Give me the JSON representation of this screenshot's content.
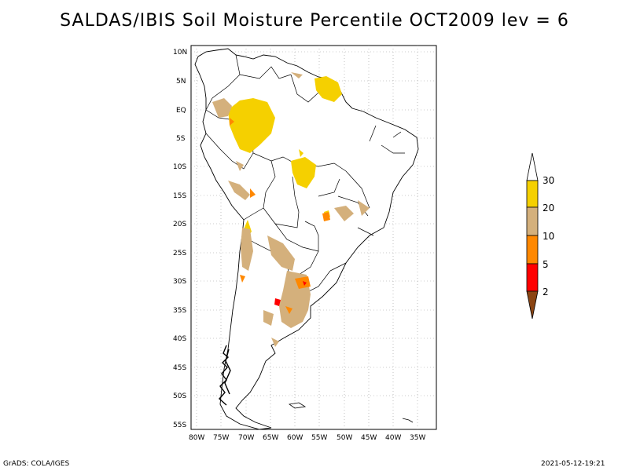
{
  "title": "SALDAS/IBIS Soil Moisture Percentile OCT2009 lev = 6",
  "footer": {
    "left": "GrADS: COLA/IGES",
    "right": "2021-05-12-19:21"
  },
  "axes": {
    "lat_labels": [
      "10N",
      "5N",
      "EQ",
      "5S",
      "10S",
      "15S",
      "20S",
      "25S",
      "30S",
      "35S",
      "40S",
      "45S",
      "50S",
      "55S"
    ],
    "lon_labels": [
      "80W",
      "75W",
      "70W",
      "65W",
      "60W",
      "55W",
      "50W",
      "45W",
      "40W",
      "35W"
    ]
  },
  "legend": {
    "labels": [
      "30",
      "20",
      "10",
      "5",
      "2"
    ],
    "colors": {
      "above_30": "#ffffff",
      "20_30": "#f5d000",
      "10_20": "#d4b07c",
      "5_10": "#ff8800",
      "2_5": "#ff0000",
      "below_2": "#8b4513"
    }
  },
  "map": {
    "land_fill": "#ffffff",
    "outline": "#000000",
    "grid": "dotted"
  }
}
